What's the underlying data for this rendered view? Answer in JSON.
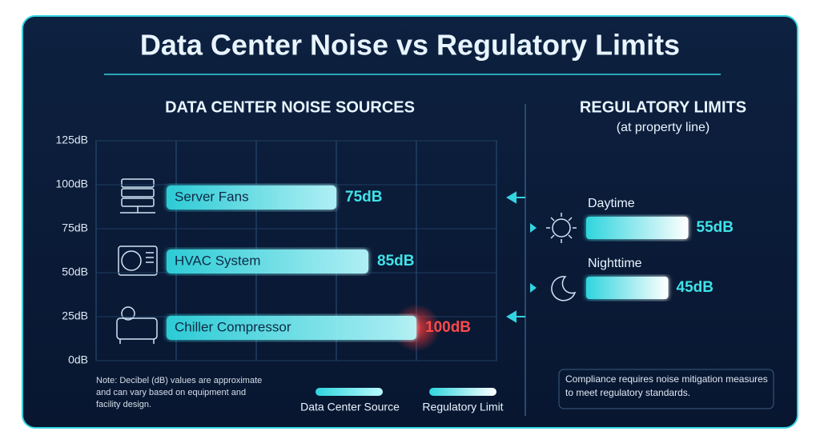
{
  "chart_data": {
    "type": "bar",
    "title": "Data Center Noise vs Regulatory Limits",
    "section_title": "DATA CENTER NOISE SOURCES",
    "categories": [
      "Server Fans",
      "HVAC System",
      "Chiller Compressor"
    ],
    "values": [
      75,
      85,
      100
    ],
    "value_labels": [
      "75dB",
      "85dB",
      "100dB"
    ],
    "color": "#3fe3e8",
    "highlight_color": "#ff4a4a",
    "ylim": [
      0,
      125
    ],
    "yticks": [
      {
        "value": 0,
        "label": "0dB"
      },
      {
        "value": 25,
        "label": "25dB"
      },
      {
        "value": 50,
        "label": "50dB"
      },
      {
        "value": 75,
        "label": "75dB"
      },
      {
        "value": 100,
        "label": "100dB"
      },
      {
        "value": 125,
        "label": "125dB"
      }
    ],
    "grid": true,
    "note": "Note: Decibel (dB) values are approximate and can vary based on equipment and facility design.",
    "legend": [
      "Data Center Source",
      "Regulatory Limit"
    ],
    "regulatory": {
      "title": "REGULATORY LIMITS",
      "subtitle": "(at property line)",
      "categories": [
        "Daytime",
        "Nighttime"
      ],
      "values": [
        55,
        45
      ],
      "value_labels": [
        "55dB",
        "45dB"
      ]
    },
    "compliance": "Compliance requires noise mitigation measures to meet regulatory standards."
  }
}
